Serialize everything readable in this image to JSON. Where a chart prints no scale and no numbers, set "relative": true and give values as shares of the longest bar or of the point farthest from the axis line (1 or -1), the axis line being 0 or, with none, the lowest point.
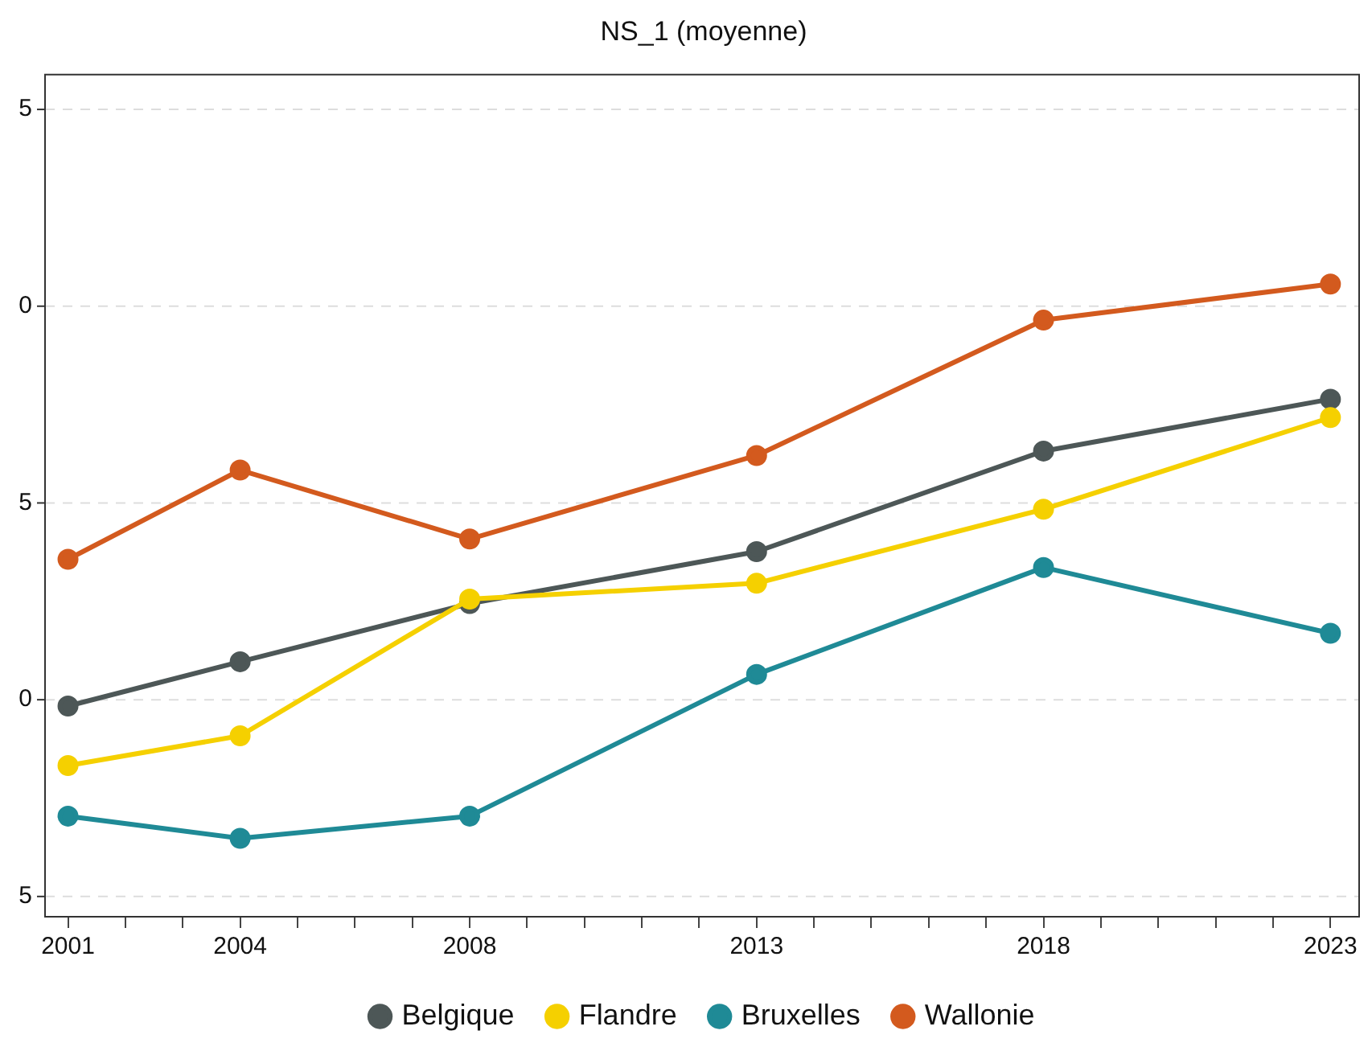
{
  "chart_data": {
    "type": "line",
    "title": "NS_1 (moyenne)",
    "relative": true,
    "x": [
      2001,
      2004,
      2008,
      2013,
      2018,
      2023
    ],
    "series": [
      {
        "name": "Belgique",
        "color": "#4d5757",
        "values": [
          0.333,
          0.403,
          0.495,
          0.577,
          0.736,
          0.818
        ]
      },
      {
        "name": "Flandre",
        "color": "#f5d000",
        "values": [
          0.239,
          0.286,
          0.502,
          0.527,
          0.644,
          0.789
        ]
      },
      {
        "name": "Bruxelles",
        "color": "#1f8a96",
        "values": [
          0.159,
          0.124,
          0.159,
          0.383,
          0.552,
          0.448
        ]
      },
      {
        "name": "Wallonie",
        "color": "#d35a1e",
        "values": [
          0.565,
          0.706,
          0.597,
          0.729,
          0.943,
          1
        ]
      }
    ],
    "xlim": [
      2000.6,
      2023.5
    ],
    "xticks": [
      2001,
      {
        "value": 2002,
        "label": null
      },
      {
        "value": 2003,
        "label": null
      },
      2004,
      {
        "value": 2005,
        "label": null
      },
      {
        "value": 2006,
        "label": null
      },
      {
        "value": 2007,
        "label": null
      },
      2008,
      {
        "value": 2009,
        "label": null
      },
      {
        "value": 2010,
        "label": null
      },
      {
        "value": 2011,
        "label": null
      },
      {
        "value": 2012,
        "label": null
      },
      2013,
      {
        "value": 2014,
        "label": null
      },
      {
        "value": 2015,
        "label": null
      },
      {
        "value": 2016,
        "label": null
      },
      {
        "value": 2017,
        "label": null
      },
      2018,
      {
        "value": 2019,
        "label": null
      },
      {
        "value": 2020,
        "label": null
      },
      {
        "value": 2021,
        "label": null
      },
      {
        "value": 2022,
        "label": null
      },
      2023
    ],
    "annotations": [
      "5",
      "0",
      "5",
      "0",
      "5"
    ],
    "grid": "y",
    "legend": "bottom",
    "marker": "circle",
    "line_style": "solid"
  }
}
